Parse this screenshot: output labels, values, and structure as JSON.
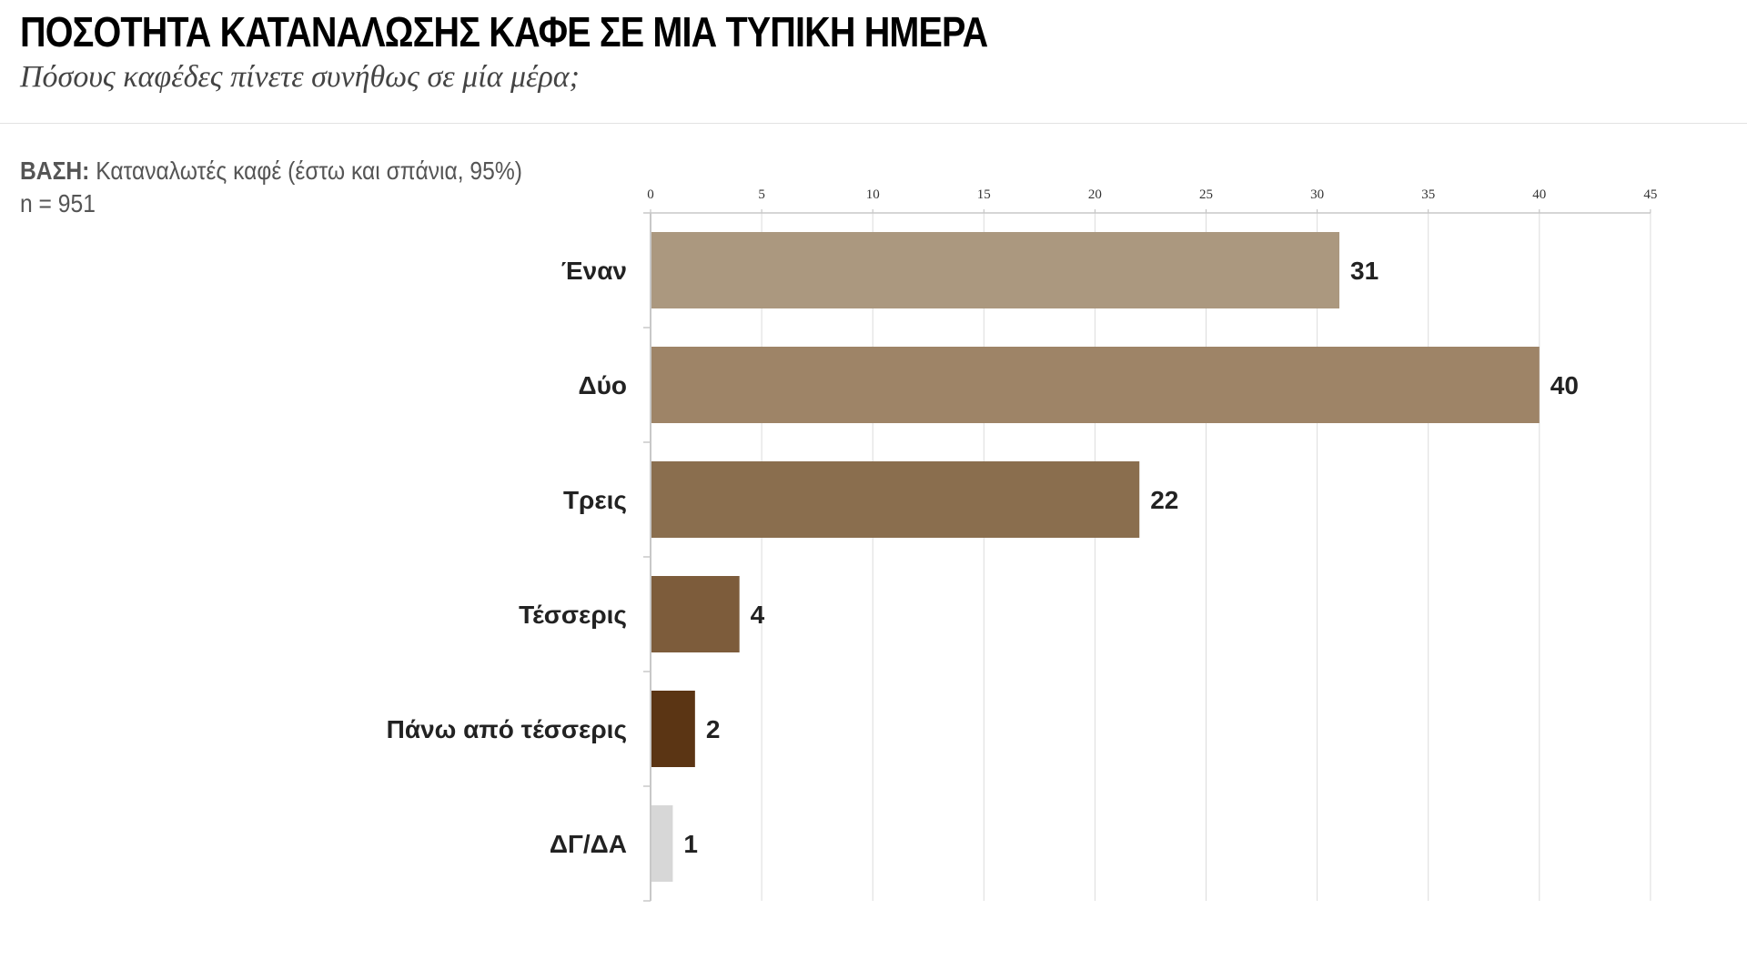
{
  "header": {
    "title": "ΠΟΣΟΤΗΤΑ ΚΑΤΑΝΑΛΩΣΗΣ ΚΑΦΕ ΣΕ ΜΙΑ ΤΥΠΙΚΗ ΗΜΕΡΑ",
    "subtitle": "Πόσους καφέδες πίνετε συνήθως σε μία μέρα;"
  },
  "base_note": {
    "label": "ΒΑΣΗ:",
    "text": "Καταναλωτές καφέ (έστω και σπάνια, 95%)",
    "sample": "n = 951"
  },
  "chart_data": {
    "type": "bar",
    "orientation": "horizontal",
    "categories": [
      "Έναν",
      "Δύο",
      "Τρεις",
      "Τέσσερις",
      "Πάνω από τέσσερις",
      "ΔΓ/ΔΑ"
    ],
    "values": [
      31,
      40,
      22,
      4,
      2,
      1
    ],
    "bar_colors": [
      "#ab987f",
      "#9e8467",
      "#8a6e4e",
      "#7d5c3b",
      "#5b3514",
      "#d7d7d7"
    ],
    "xlim": [
      0,
      45
    ],
    "xticks": [
      0,
      5,
      10,
      15,
      20,
      25,
      30,
      35,
      40,
      45
    ],
    "x_axis_position": "top",
    "grid": true,
    "data_labels": true
  }
}
